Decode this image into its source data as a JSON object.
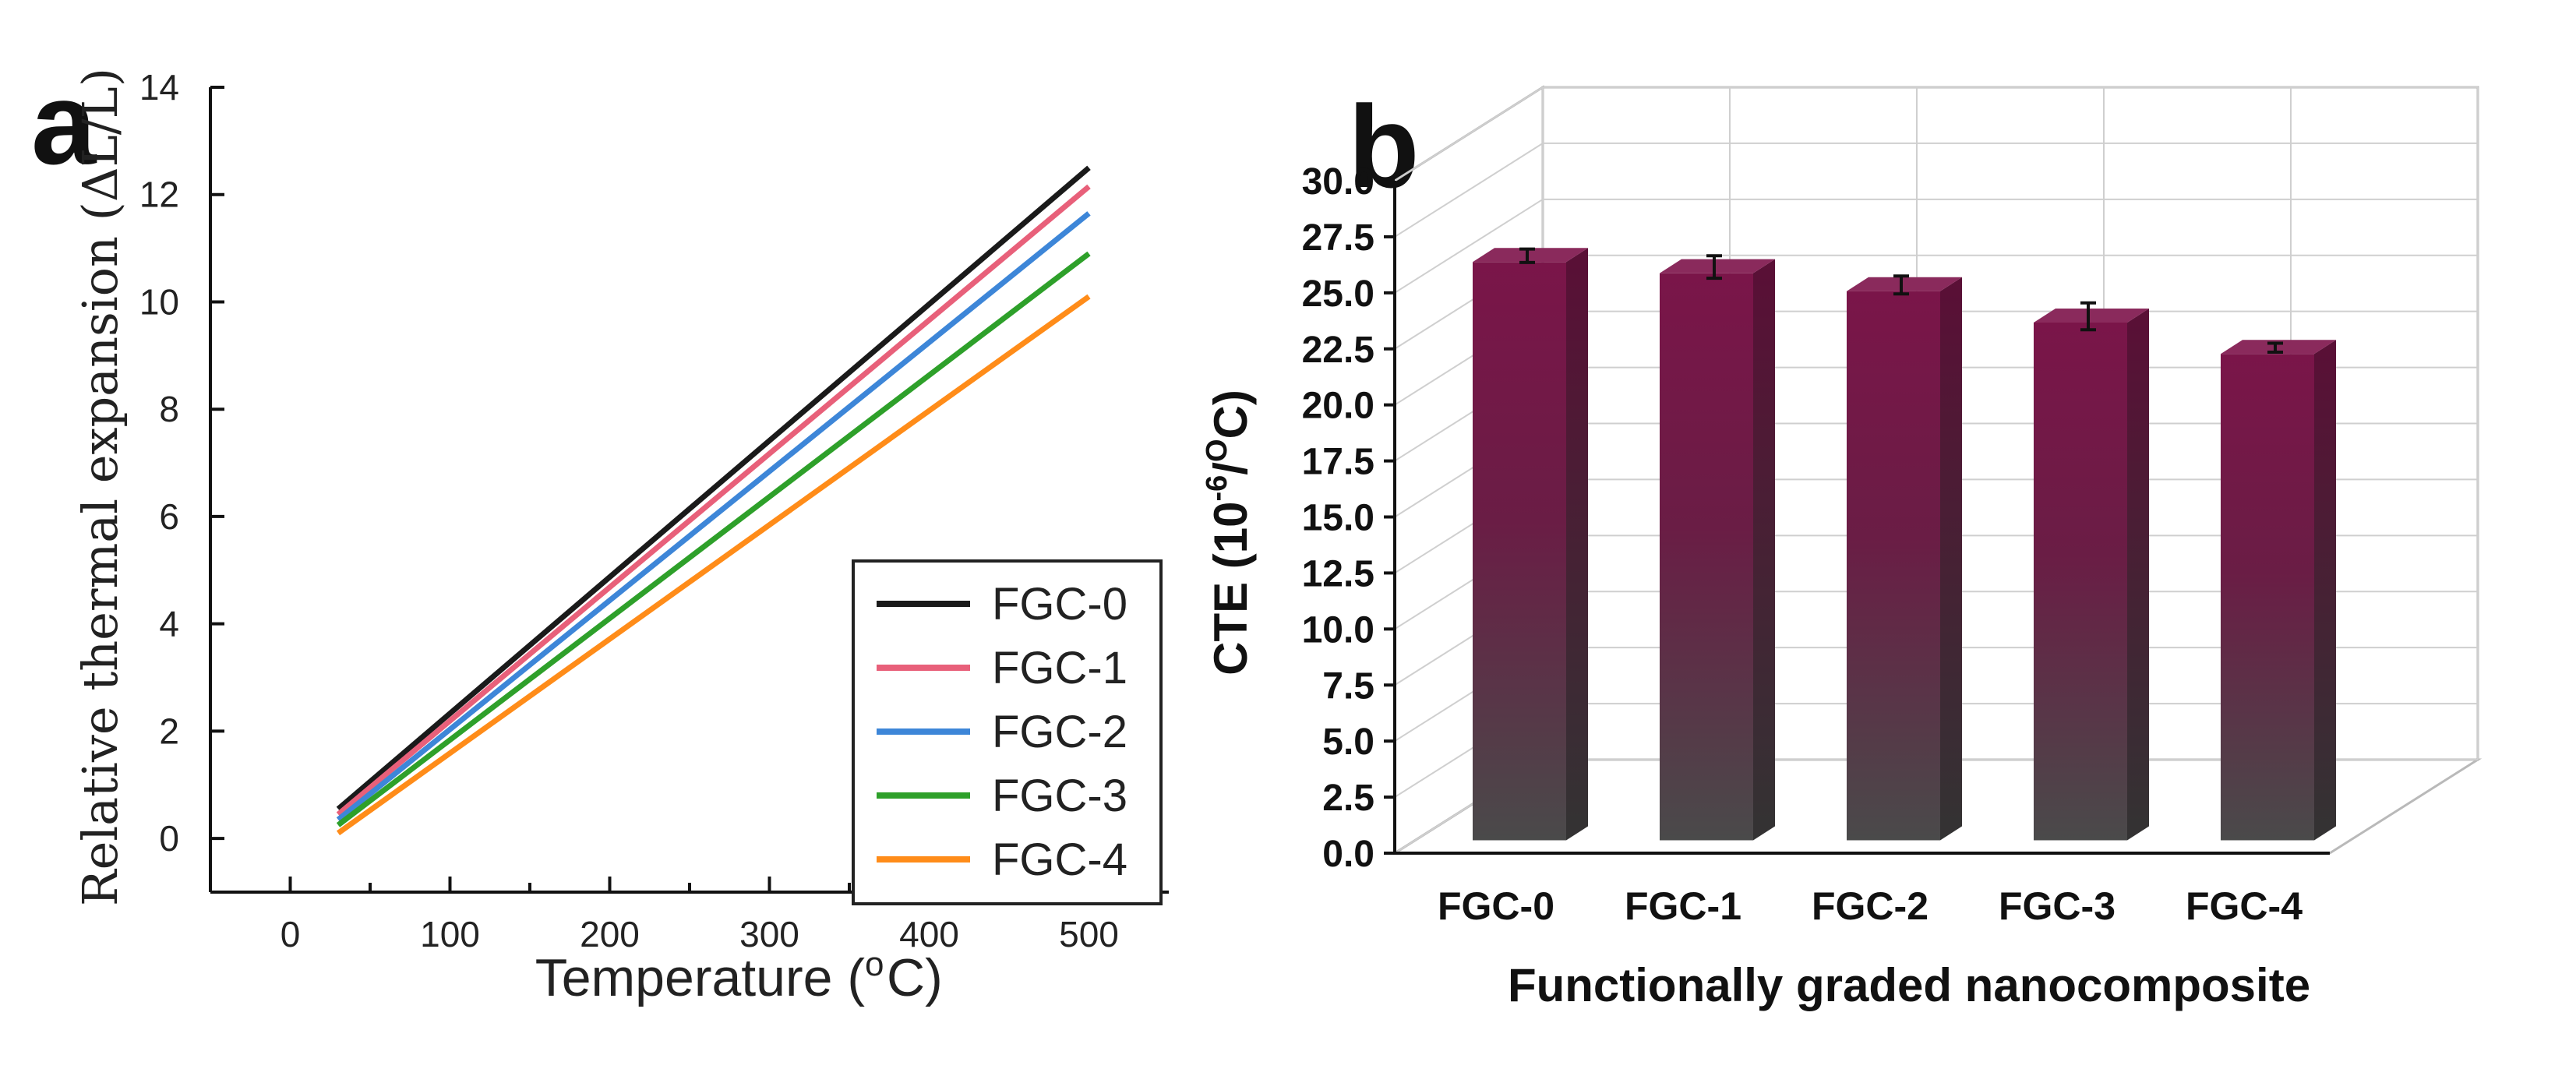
{
  "chart_data": [
    {
      "panel": "a",
      "type": "line",
      "xlabel": "Temperature (",
      "xlabel_unit_sup": "o",
      "xlabel_unit": "C)",
      "ylabel": "Relative thermal expansion  (ΔL/L)",
      "xlim": [
        -50,
        550
      ],
      "ylim": [
        -1,
        14
      ],
      "xticks": [
        0,
        100,
        200,
        300,
        400,
        500
      ],
      "yticks": [
        0,
        2,
        4,
        6,
        8,
        10,
        12,
        14
      ],
      "legend_position": "bottom-right",
      "series": [
        {
          "name": "FGC-0",
          "color": "#1a1a1a",
          "x": [
            30,
            500
          ],
          "y": [
            0.55,
            12.5
          ]
        },
        {
          "name": "FGC-1",
          "color": "#e8607a",
          "x": [
            30,
            500
          ],
          "y": [
            0.45,
            12.15
          ]
        },
        {
          "name": "FGC-2",
          "color": "#3d86d8",
          "x": [
            30,
            500
          ],
          "y": [
            0.35,
            11.65
          ]
        },
        {
          "name": "FGC-3",
          "color": "#2ea02a",
          "x": [
            30,
            500
          ],
          "y": [
            0.25,
            10.9
          ]
        },
        {
          "name": "FGC-4",
          "color": "#ff8c19",
          "x": [
            30,
            500
          ],
          "y": [
            0.1,
            10.1
          ]
        }
      ]
    },
    {
      "panel": "b",
      "type": "bar",
      "categories": [
        "FGC-0",
        "FGC-1",
        "FGC-2",
        "FGC-3",
        "FGC-4"
      ],
      "values": [
        27.0,
        26.5,
        25.7,
        24.3,
        22.9
      ],
      "errors": [
        0.3,
        0.5,
        0.4,
        0.6,
        0.2
      ],
      "ylim": [
        0,
        30
      ],
      "yticks": [
        0.0,
        2.5,
        5.0,
        7.5,
        10.0,
        12.5,
        15.0,
        17.5,
        20.0,
        22.5,
        25.0,
        27.5,
        30.0
      ],
      "ylabel_prefix": "CTE (10",
      "ylabel_sup1": "-6",
      "ylabel_mid": "/",
      "ylabel_sup2": "O",
      "ylabel_suffix": "C)",
      "xlabel": "Functionally graded nanocomposite",
      "bar_color_top": "#7a1549",
      "bar_color_bottom": "#4a4a4a"
    }
  ],
  "labels": {
    "panel_a": "a",
    "panel_b": "b"
  }
}
